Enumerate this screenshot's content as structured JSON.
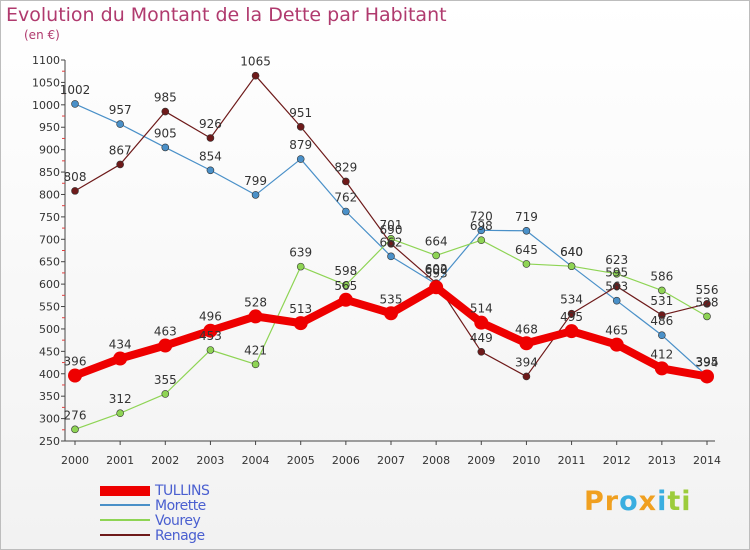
{
  "header": {
    "title": "Evolution du Montant de la Dette par Habitant",
    "subtitle": "(en €)"
  },
  "brand": {
    "parts": [
      "Pr",
      "o",
      "x",
      "i",
      "ti"
    ],
    "colors": [
      "#f0a020",
      "#3aaee0",
      "#f0a020",
      "#3aaee0",
      "#9ccc3c"
    ]
  },
  "chart_data": {
    "type": "line",
    "title": "Evolution du Montant de la Dette par Habitant",
    "subtitle": "(en €)",
    "x": [
      2000,
      2001,
      2002,
      2003,
      2004,
      2005,
      2006,
      2007,
      2008,
      2009,
      2010,
      2011,
      2012,
      2013,
      2014
    ],
    "ylim": [
      250,
      1100
    ],
    "yticks": [
      250,
      300,
      350,
      400,
      450,
      500,
      550,
      600,
      650,
      700,
      750,
      800,
      850,
      900,
      950,
      1000,
      1050,
      1100
    ],
    "grid": false,
    "legend_position": "bottom-left",
    "series": [
      {
        "name": "TULLINS",
        "color": "#ee0000",
        "values": [
          396,
          434,
          463,
          496,
          528,
          513,
          565,
          535,
          593,
          514,
          468,
          495,
          465,
          412,
          394
        ]
      },
      {
        "name": "Morette",
        "color": "#4a90c8",
        "values": [
          1002,
          957,
          905,
          854,
          799,
          879,
          762,
          662,
          600,
          720,
          719,
          640,
          563,
          486,
          395
        ]
      },
      {
        "name": "Vourey",
        "color": "#8ed454",
        "values": [
          276,
          312,
          355,
          453,
          421,
          639,
          598,
          701,
          664,
          698,
          645,
          640,
          623,
          586,
          528
        ]
      },
      {
        "name": "Renage",
        "color": "#6e1a1a",
        "values": [
          808,
          867,
          985,
          926,
          1065,
          951,
          829,
          690,
          602,
          449,
          394,
          534,
          595,
          531,
          556
        ]
      }
    ]
  }
}
